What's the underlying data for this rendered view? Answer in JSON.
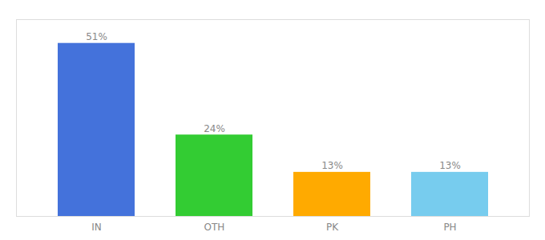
{
  "chart_data": {
    "type": "bar",
    "categories": [
      "IN",
      "OTH",
      "PK",
      "PH"
    ],
    "values": [
      51,
      24,
      13,
      13
    ],
    "value_labels": [
      "51%",
      "24%",
      "13%",
      "13%"
    ],
    "colors": [
      "#4472db",
      "#33cc33",
      "#ffaa00",
      "#77ccee"
    ],
    "ylim": [
      0,
      58
    ],
    "data_labels": true,
    "tick_labels": "x",
    "grid": false
  }
}
